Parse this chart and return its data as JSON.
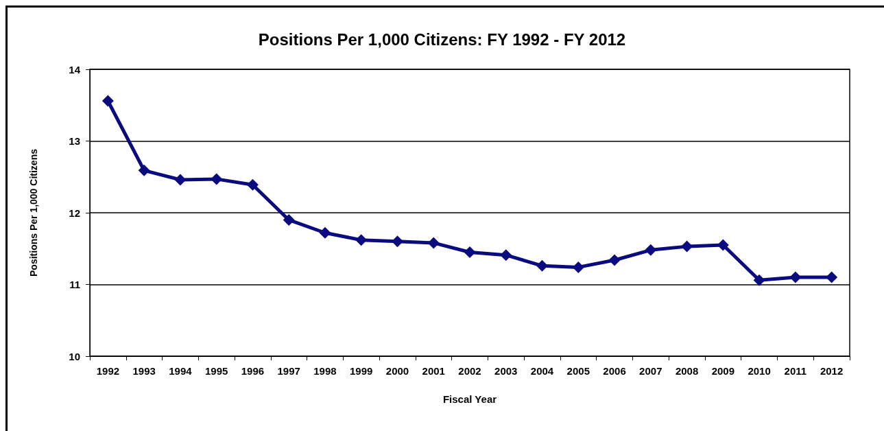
{
  "chart_data": {
    "type": "line",
    "title": "Positions Per 1,000 Citizens: FY 1992 - FY 2012",
    "xlabel": "Fiscal Year",
    "ylabel": "Positions Per 1,000 Citizens",
    "categories": [
      "1992",
      "1993",
      "1994",
      "1995",
      "1996",
      "1997",
      "1998",
      "1999",
      "2000",
      "2001",
      "2002",
      "2003",
      "2004",
      "2005",
      "2006",
      "2007",
      "2008",
      "2009",
      "2010",
      "2011",
      "2012"
    ],
    "series": [
      {
        "color": "#0b0b80",
        "values": [
          13.56,
          12.59,
          12.46,
          12.47,
          12.39,
          11.9,
          11.72,
          11.62,
          11.6,
          11.58,
          11.45,
          11.41,
          11.26,
          11.24,
          11.34,
          11.48,
          11.53,
          11.55,
          11.06,
          11.1,
          11.1
        ]
      }
    ],
    "ylim": [
      10,
      14
    ],
    "yticks": [
      10,
      11,
      12,
      13,
      14
    ],
    "grid": "y",
    "marker": "diamond",
    "line_style": "solid"
  }
}
